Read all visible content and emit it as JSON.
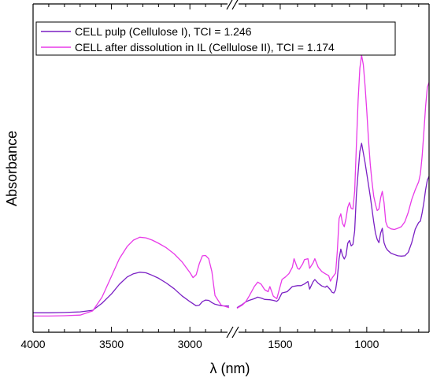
{
  "chart_data": {
    "type": "line",
    "xlabel": "λ (nm)",
    "ylabel": "Absorbance",
    "x_reversed": true,
    "axis_break": true,
    "xlim": [
      4000,
      640
    ],
    "x_ticks": [
      4000,
      3500,
      3000,
      1500,
      1000
    ],
    "ylim": [
      0,
      1.0
    ],
    "y_ticks_shown": false,
    "legend_position": "top-left",
    "series": [
      {
        "name": "CELL pulp (Cellulose I), TCI = 1.246",
        "color": "#7a1fc4",
        "segments": [
          [
            [
              4000,
              0.036
            ],
            [
              3900,
              0.036
            ],
            [
              3800,
              0.037
            ],
            [
              3700,
              0.039
            ],
            [
              3620,
              0.044
            ],
            [
              3560,
              0.066
            ],
            [
              3500,
              0.095
            ],
            [
              3450,
              0.125
            ],
            [
              3400,
              0.148
            ],
            [
              3360,
              0.158
            ],
            [
              3320,
              0.163
            ],
            [
              3280,
              0.161
            ],
            [
              3240,
              0.153
            ],
            [
              3200,
              0.144
            ],
            [
              3150,
              0.129
            ],
            [
              3100,
              0.111
            ],
            [
              3050,
              0.089
            ],
            [
              3000,
              0.071
            ],
            [
              2960,
              0.058
            ],
            [
              2940,
              0.06
            ],
            [
              2920,
              0.071
            ],
            [
              2900,
              0.076
            ],
            [
              2880,
              0.075
            ],
            [
              2860,
              0.068
            ],
            [
              2840,
              0.063
            ],
            [
              2800,
              0.058
            ],
            [
              2750,
              0.057
            ]
          ],
          [
            [
              1750,
              0.052
            ],
            [
              1720,
              0.062
            ],
            [
              1700,
              0.07
            ],
            [
              1680,
              0.075
            ],
            [
              1650,
              0.08
            ],
            [
              1630,
              0.085
            ],
            [
              1610,
              0.082
            ],
            [
              1590,
              0.078
            ],
            [
              1560,
              0.077
            ],
            [
              1540,
              0.075
            ],
            [
              1520,
              0.072
            ],
            [
              1510,
              0.077
            ],
            [
              1490,
              0.098
            ],
            [
              1460,
              0.102
            ],
            [
              1430,
              0.118
            ],
            [
              1400,
              0.121
            ],
            [
              1380,
              0.121
            ],
            [
              1360,
              0.126
            ],
            [
              1340,
              0.134
            ],
            [
              1330,
              0.11
            ],
            [
              1310,
              0.133
            ],
            [
              1300,
              0.14
            ],
            [
              1280,
              0.128
            ],
            [
              1260,
              0.12
            ],
            [
              1240,
              0.116
            ],
            [
              1230,
              0.12
            ],
            [
              1210,
              0.108
            ],
            [
              1200,
              0.1
            ],
            [
              1190,
              0.098
            ],
            [
              1180,
              0.108
            ],
            [
              1170,
              0.145
            ],
            [
              1160,
              0.205
            ],
            [
              1150,
              0.235
            ],
            [
              1140,
              0.215
            ],
            [
              1130,
              0.204
            ],
            [
              1120,
              0.215
            ],
            [
              1110,
              0.253
            ],
            [
              1100,
              0.262
            ],
            [
              1090,
              0.245
            ],
            [
              1080,
              0.25
            ],
            [
              1070,
              0.292
            ],
            [
              1060,
              0.405
            ],
            [
              1050,
              0.475
            ],
            [
              1040,
              0.54
            ],
            [
              1030,
              0.565
            ],
            [
              1020,
              0.535
            ],
            [
              1010,
              0.505
            ],
            [
              1000,
              0.47
            ],
            [
              990,
              0.435
            ],
            [
              980,
              0.4
            ],
            [
              970,
              0.36
            ],
            [
              960,
              0.32
            ],
            [
              950,
              0.285
            ],
            [
              940,
              0.265
            ],
            [
              930,
              0.255
            ],
            [
              920,
              0.285
            ],
            [
              910,
              0.3
            ],
            [
              900,
              0.255
            ],
            [
              890,
              0.24
            ],
            [
              880,
              0.232
            ],
            [
              860,
              0.222
            ],
            [
              840,
              0.218
            ],
            [
              820,
              0.214
            ],
            [
              800,
              0.213
            ],
            [
              780,
              0.214
            ],
            [
              760,
              0.225
            ],
            [
              740,
              0.255
            ],
            [
              720,
              0.297
            ],
            [
              700,
              0.318
            ],
            [
              690,
              0.322
            ],
            [
              680,
              0.348
            ],
            [
              670,
              0.38
            ],
            [
              660,
              0.42
            ],
            [
              650,
              0.45
            ],
            [
              640,
              0.462
            ]
          ]
        ]
      },
      {
        "name": "CELL after dissolution in IL (Cellulose II), TCI = 1.174",
        "color": "#e83ae8",
        "segments": [
          [
            [
              4000,
              0.026
            ],
            [
              3900,
              0.026
            ],
            [
              3800,
              0.027
            ],
            [
              3700,
              0.029
            ],
            [
              3620,
              0.042
            ],
            [
              3560,
              0.085
            ],
            [
              3500,
              0.15
            ],
            [
              3450,
              0.205
            ],
            [
              3400,
              0.243
            ],
            [
              3360,
              0.263
            ],
            [
              3320,
              0.272
            ],
            [
              3280,
              0.27
            ],
            [
              3240,
              0.263
            ],
            [
              3200,
              0.253
            ],
            [
              3150,
              0.239
            ],
            [
              3100,
              0.22
            ],
            [
              3050,
              0.195
            ],
            [
              3000,
              0.162
            ],
            [
              2980,
              0.146
            ],
            [
              2960,
              0.155
            ],
            [
              2940,
              0.19
            ],
            [
              2920,
              0.214
            ],
            [
              2900,
              0.215
            ],
            [
              2880,
              0.205
            ],
            [
              2860,
              0.165
            ],
            [
              2840,
              0.09
            ],
            [
              2800,
              0.06
            ],
            [
              2750,
              0.052
            ]
          ],
          [
            [
              1750,
              0.05
            ],
            [
              1720,
              0.06
            ],
            [
              1700,
              0.07
            ],
            [
              1680,
              0.088
            ],
            [
              1650,
              0.118
            ],
            [
              1630,
              0.132
            ],
            [
              1610,
              0.125
            ],
            [
              1590,
              0.108
            ],
            [
              1570,
              0.102
            ],
            [
              1560,
              0.118
            ],
            [
              1540,
              0.088
            ],
            [
              1520,
              0.08
            ],
            [
              1510,
              0.1
            ],
            [
              1490,
              0.14
            ],
            [
              1470,
              0.148
            ],
            [
              1450,
              0.158
            ],
            [
              1430,
              0.178
            ],
            [
              1420,
              0.205
            ],
            [
              1400,
              0.175
            ],
            [
              1390,
              0.172
            ],
            [
              1370,
              0.189
            ],
            [
              1360,
              0.202
            ],
            [
              1340,
              0.205
            ],
            [
              1330,
              0.175
            ],
            [
              1310,
              0.192
            ],
            [
              1300,
              0.205
            ],
            [
              1280,
              0.178
            ],
            [
              1260,
              0.165
            ],
            [
              1240,
              0.158
            ],
            [
              1220,
              0.152
            ],
            [
              1210,
              0.135
            ],
            [
              1200,
              0.145
            ],
            [
              1180,
              0.16
            ],
            [
              1170,
              0.23
            ],
            [
              1160,
              0.33
            ],
            [
              1150,
              0.345
            ],
            [
              1140,
              0.315
            ],
            [
              1130,
              0.305
            ],
            [
              1120,
              0.33
            ],
            [
              1110,
              0.365
            ],
            [
              1100,
              0.38
            ],
            [
              1090,
              0.362
            ],
            [
              1080,
              0.36
            ],
            [
              1070,
              0.415
            ],
            [
              1060,
              0.56
            ],
            [
              1050,
              0.7
            ],
            [
              1040,
              0.8
            ],
            [
              1030,
              0.84
            ],
            [
              1020,
              0.81
            ],
            [
              1010,
              0.745
            ],
            [
              1000,
              0.665
            ],
            [
              990,
              0.575
            ],
            [
              980,
              0.5
            ],
            [
              970,
              0.445
            ],
            [
              960,
              0.4
            ],
            [
              950,
              0.375
            ],
            [
              940,
              0.355
            ],
            [
              930,
              0.36
            ],
            [
              920,
              0.395
            ],
            [
              910,
              0.415
            ],
            [
              900,
              0.38
            ],
            [
              890,
              0.32
            ],
            [
              880,
              0.305
            ],
            [
              860,
              0.298
            ],
            [
              840,
              0.296
            ],
            [
              820,
              0.3
            ],
            [
              800,
              0.305
            ],
            [
              780,
              0.32
            ],
            [
              760,
              0.35
            ],
            [
              740,
              0.39
            ],
            [
              720,
              0.42
            ],
            [
              700,
              0.445
            ],
            [
              690,
              0.47
            ],
            [
              680,
              0.525
            ],
            [
              670,
              0.6
            ],
            [
              660,
              0.68
            ],
            [
              650,
              0.74
            ],
            [
              640,
              0.755
            ]
          ]
        ]
      }
    ]
  }
}
